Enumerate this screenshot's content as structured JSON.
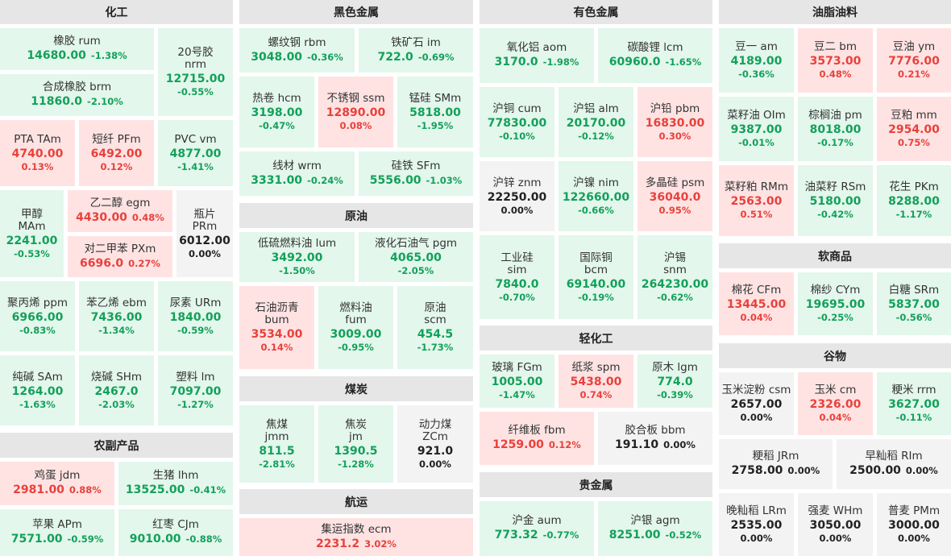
{
  "sections": {
    "chem": "化工",
    "ferrous": "黑色金属",
    "nonferrous": "有色金属",
    "oils": "油脂油料",
    "agri": "农副产品",
    "crude": "原油",
    "coal": "煤炭",
    "shipping": "航运",
    "light": "轻化工",
    "precious": "贵金属",
    "soft": "软商品",
    "grain": "谷物"
  },
  "items": {
    "rum": {
      "name": "橡胶 rum",
      "price": "14680.00",
      "pct": "-1.38%"
    },
    "nrm": {
      "name": "20号胶",
      "code": "nrm",
      "price": "12715.00",
      "pct": "-0.55%"
    },
    "brm": {
      "name": "合成橡胶 brm",
      "price": "11860.0",
      "pct": "-2.10%"
    },
    "tam": {
      "name": "PTA TAm",
      "price": "4740.00",
      "pct": "0.13%"
    },
    "pfm": {
      "name": "短纤 PFm",
      "price": "6492.00",
      "pct": "0.12%"
    },
    "vm": {
      "name": "PVC vm",
      "price": "4877.00",
      "pct": "-1.41%"
    },
    "mam": {
      "name": "甲醇",
      "code": "MAm",
      "price": "2241.00",
      "pct": "-0.53%"
    },
    "egm": {
      "name": "乙二醇 egm",
      "price": "4430.00",
      "pct": "0.48%"
    },
    "prm": {
      "name": "瓶片",
      "code": "PRm",
      "price": "6012.00",
      "pct": "0.00%"
    },
    "pxm": {
      "name": "对二甲苯 PXm",
      "price": "6696.0",
      "pct": "0.27%"
    },
    "ppm": {
      "name": "聚丙烯 ppm",
      "price": "6966.00",
      "pct": "-0.83%"
    },
    "ebm": {
      "name": "苯乙烯 ebm",
      "price": "7436.00",
      "pct": "-1.34%"
    },
    "urm": {
      "name": "尿素 URm",
      "price": "1840.00",
      "pct": "-0.59%"
    },
    "sam": {
      "name": "纯碱 SAm",
      "price": "1264.00",
      "pct": "-1.63%"
    },
    "shm": {
      "name": "烧碱 SHm",
      "price": "2467.0",
      "pct": "-2.03%"
    },
    "lm": {
      "name": "塑料 lm",
      "price": "7097.00",
      "pct": "-1.27%"
    },
    "jdm": {
      "name": "鸡蛋 jdm",
      "price": "2981.00",
      "pct": "0.88%"
    },
    "lhm": {
      "name": "生猪 lhm",
      "price": "13525.00",
      "pct": "-0.41%"
    },
    "apm": {
      "name": "苹果 APm",
      "price": "7571.00",
      "pct": "-0.59%"
    },
    "cjm": {
      "name": "红枣 CJm",
      "price": "9010.00",
      "pct": "-0.88%"
    },
    "rbm": {
      "name": "螺纹钢 rbm",
      "price": "3048.00",
      "pct": "-0.36%"
    },
    "im": {
      "name": "铁矿石 im",
      "price": "722.0",
      "pct": "-0.69%"
    },
    "hcm": {
      "name": "热卷 hcm",
      "price": "3198.00",
      "pct": "-0.47%"
    },
    "ssm": {
      "name": "不锈钢 ssm",
      "price": "12890.00",
      "pct": "0.08%"
    },
    "smm": {
      "name": "锰硅 SMm",
      "price": "5818.00",
      "pct": "-1.95%"
    },
    "wrm": {
      "name": "线材 wrm",
      "price": "3331.00",
      "pct": "-0.24%"
    },
    "sfm": {
      "name": "硅铁 SFm",
      "price": "5556.00",
      "pct": "-1.03%"
    },
    "lum": {
      "name": "低硫燃料油 lum",
      "price": "3492.00",
      "pct": "-1.50%"
    },
    "pgm": {
      "name": "液化石油气 pgm",
      "price": "4065.00",
      "pct": "-2.05%"
    },
    "bum": {
      "name": "石油沥青",
      "code": "bum",
      "price": "3534.00",
      "pct": "0.14%"
    },
    "fum": {
      "name": "燃料油",
      "code": "fum",
      "price": "3009.00",
      "pct": "-0.95%"
    },
    "scm": {
      "name": "原油",
      "code": "scm",
      "price": "454.5",
      "pct": "-1.73%"
    },
    "jmm": {
      "name": "焦煤",
      "code": "jmm",
      "price": "811.5",
      "pct": "-2.81%"
    },
    "jm": {
      "name": "焦炭",
      "code": "jm",
      "price": "1390.5",
      "pct": "-1.28%"
    },
    "zcm": {
      "name": "动力煤",
      "code": "ZCm",
      "price": "921.0",
      "pct": "0.00%"
    },
    "ecm": {
      "name": "集运指数 ecm",
      "price": "2231.2",
      "pct": "3.02%"
    },
    "aom": {
      "name": "氧化铝 aom",
      "price": "3170.0",
      "pct": "-1.98%"
    },
    "lcm": {
      "name": "碳酸锂 lcm",
      "price": "60960.0",
      "pct": "-1.65%"
    },
    "cum": {
      "name": "沪铜 cum",
      "price": "77830.00",
      "pct": "-0.10%"
    },
    "alm": {
      "name": "沪铝 alm",
      "price": "20170.00",
      "pct": "-0.12%"
    },
    "pbm": {
      "name": "沪铅 pbm",
      "price": "16830.00",
      "pct": "0.30%"
    },
    "znm": {
      "name": "沪锌 znm",
      "price": "22250.00",
      "pct": "0.00%"
    },
    "nim": {
      "name": "沪镍 nim",
      "price": "122660.00",
      "pct": "-0.66%"
    },
    "psm": {
      "name": "多晶硅 psm",
      "price": "36040.0",
      "pct": "0.95%"
    },
    "sim": {
      "name": "工业硅",
      "code": "sim",
      "price": "7840.0",
      "pct": "-0.70%"
    },
    "bcm": {
      "name": "国际铜",
      "code": "bcm",
      "price": "69140.00",
      "pct": "-0.19%"
    },
    "snm": {
      "name": "沪锡",
      "code": "snm",
      "price": "264230.00",
      "pct": "-0.62%"
    },
    "fgm": {
      "name": "玻璃 FGm",
      "price": "1005.00",
      "pct": "-1.47%"
    },
    "spm": {
      "name": "纸浆 spm",
      "price": "5438.00",
      "pct": "0.74%"
    },
    "lgm": {
      "name": "原木 lgm",
      "price": "774.0",
      "pct": "-0.39%"
    },
    "fbm": {
      "name": "纤维板 fbm",
      "price": "1259.00",
      "pct": "0.12%"
    },
    "bbm": {
      "name": "胶合板 bbm",
      "price": "191.10",
      "pct": "0.00%"
    },
    "aum": {
      "name": "沪金 aum",
      "price": "773.32",
      "pct": "-0.77%"
    },
    "agm": {
      "name": "沪银 agm",
      "price": "8251.00",
      "pct": "-0.52%"
    },
    "am": {
      "name": "豆一 am",
      "price": "4189.00",
      "pct": "-0.36%"
    },
    "bm": {
      "name": "豆二 bm",
      "price": "3573.00",
      "pct": "0.48%"
    },
    "ym": {
      "name": "豆油 ym",
      "price": "7776.00",
      "pct": "0.21%"
    },
    "oim": {
      "name": "菜籽油 OIm",
      "price": "9387.00",
      "pct": "-0.01%"
    },
    "pm": {
      "name": "棕榈油 pm",
      "price": "8018.00",
      "pct": "-0.17%"
    },
    "mm": {
      "name": "豆粕 mm",
      "price": "2954.00",
      "pct": "0.75%"
    },
    "rmm": {
      "name": "菜籽粕 RMm",
      "price": "2563.00",
      "pct": "0.51%"
    },
    "rsm": {
      "name": "油菜籽 RSm",
      "price": "5180.00",
      "pct": "-0.42%"
    },
    "pkm": {
      "name": "花生 PKm",
      "price": "8288.00",
      "pct": "-1.17%"
    },
    "cfm": {
      "name": "棉花 CFm",
      "price": "13445.00",
      "pct": "0.04%"
    },
    "cym": {
      "name": "棉纱 CYm",
      "price": "19695.00",
      "pct": "-0.25%"
    },
    "srm": {
      "name": "白糖 SRm",
      "price": "5837.00",
      "pct": "-0.56%"
    },
    "csm": {
      "name": "玉米淀粉 csm",
      "price": "2657.00",
      "pct": "0.00%"
    },
    "cm": {
      "name": "玉米 cm",
      "price": "2326.00",
      "pct": "0.04%"
    },
    "rrm": {
      "name": "粳米 rrm",
      "price": "3627.00",
      "pct": "-0.11%"
    },
    "jrm": {
      "name": "粳稻 JRm",
      "price": "2758.00",
      "pct": "0.00%"
    },
    "rim": {
      "name": "早籼稻 RIm",
      "price": "2500.00",
      "pct": "0.00%"
    },
    "lrm": {
      "name": "晚籼稻 LRm",
      "price": "2535.00",
      "pct": "0.00%"
    },
    "whm": {
      "name": "强麦 WHm",
      "price": "3050.00",
      "pct": "0.00%"
    },
    "pmm": {
      "name": "普麦 PMm",
      "price": "3000.00",
      "pct": "0.00%"
    }
  },
  "colors": {
    "up": "#e8413b",
    "down": "#13a05a",
    "flat": "#222222",
    "up_bg": "#ffe3e3",
    "down_bg": "#e3f7ec",
    "flat_bg": "#f3f3f3"
  }
}
